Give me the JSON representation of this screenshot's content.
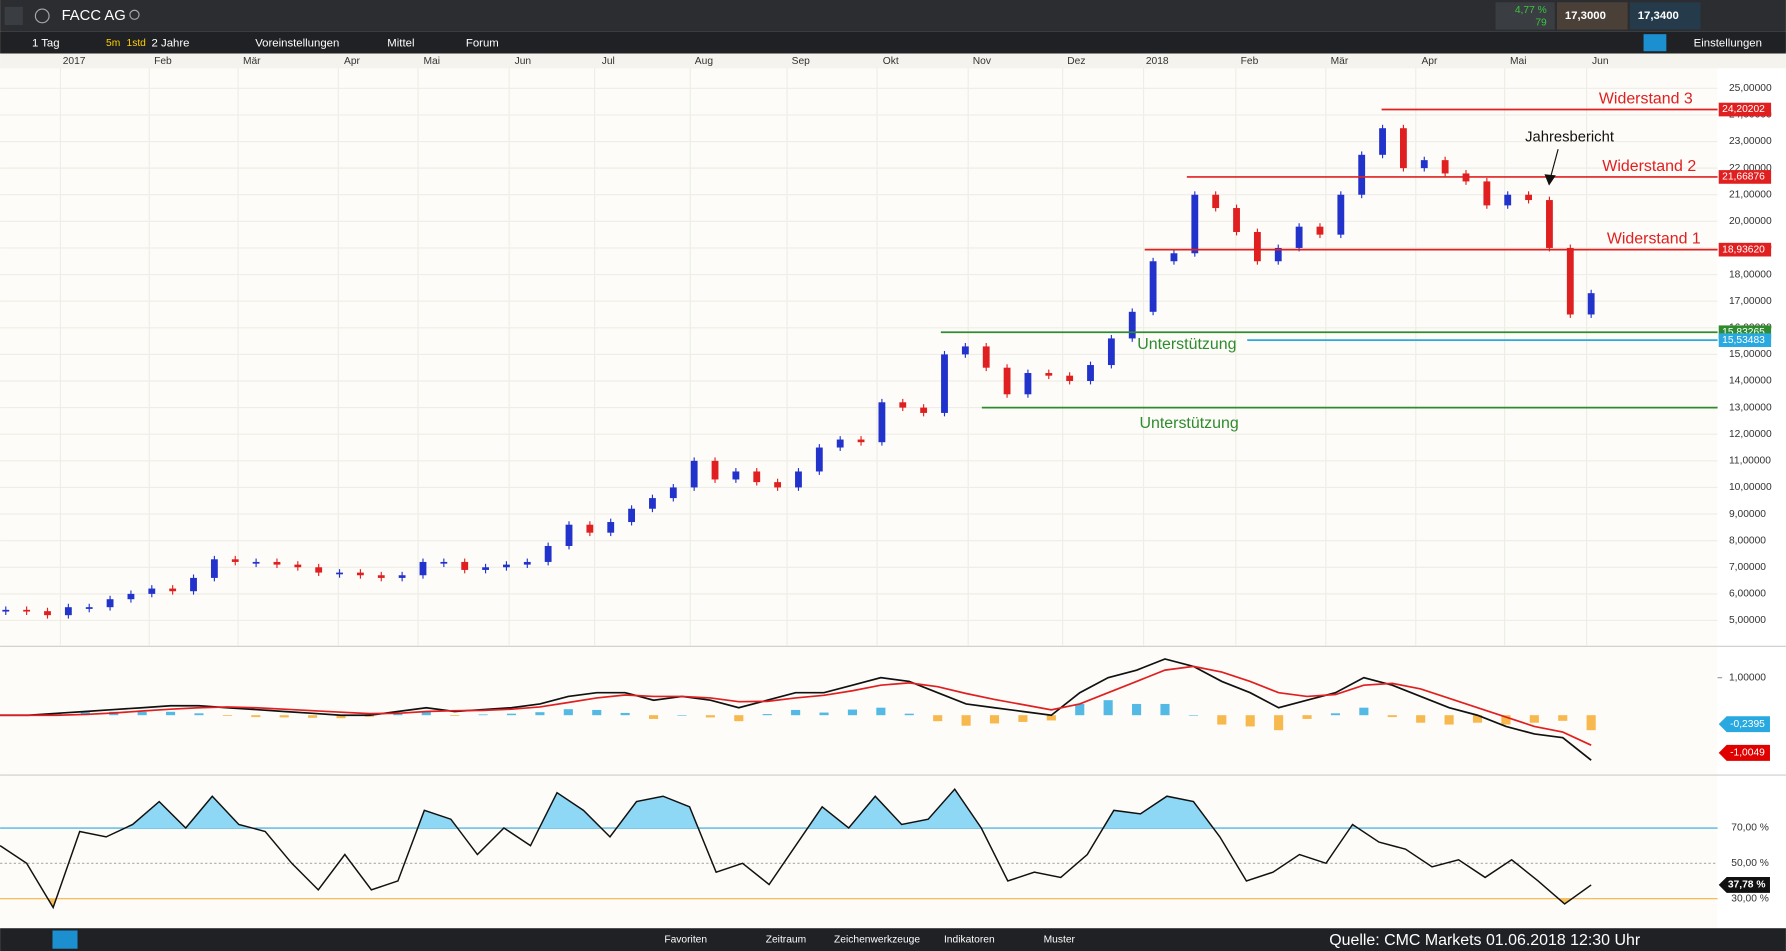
{
  "toolbar": {
    "symbol": "FACC AG",
    "change": "4,77 %",
    "count": "79",
    "bid": "17,3000",
    "ask": "17,3400"
  },
  "toolbar2": {
    "interval": "1 Tag",
    "quick1": "5m",
    "quick2": "1std",
    "range": "2 Jahre",
    "presets": "Voreinstellungen",
    "size": "Mittel",
    "forum": "Forum",
    "settings": "Einstellungen"
  },
  "footer": {
    "tabs": [
      "Favoriten",
      "Zeitraum",
      "Zeichenwerkzeuge",
      "Indikatoren",
      "Muster"
    ],
    "source": "Quelle: CMC Markets 01.06.2018 12:30 Uhr"
  },
  "chart_data": [
    {
      "type": "candlestick",
      "up_color": "#2233cc",
      "down_color": "#e02020",
      "x_labels": [
        "2017",
        "Feb",
        "Mär",
        "Apr",
        "Mai",
        "Jun",
        "Jul",
        "Aug",
        "Sep",
        "Okt",
        "Nov",
        "Dez",
        "2018",
        "Feb",
        "Mär",
        "Apr",
        "Mai",
        "Jun"
      ],
      "values": [
        5.4,
        5.35,
        5.2,
        5.5,
        5.5,
        5.8,
        6.0,
        6.2,
        6.1,
        6.6,
        7.3,
        7.2,
        7.2,
        7.1,
        7.0,
        6.8,
        6.8,
        6.7,
        6.6,
        6.7,
        7.2,
        7.2,
        6.9,
        7.0,
        7.1,
        7.2,
        7.8,
        8.6,
        8.3,
        8.7,
        9.2,
        9.6,
        10.0,
        11.0,
        10.3,
        10.6,
        10.2,
        10.0,
        10.6,
        11.5,
        11.8,
        11.7,
        13.2,
        13.0,
        12.8,
        15.0,
        15.3,
        14.5,
        13.5,
        14.3,
        14.2,
        14.0,
        14.6,
        15.6,
        16.6,
        18.5,
        18.8,
        21.0,
        20.5,
        19.6,
        18.5,
        19.0,
        19.8,
        19.5,
        21.0,
        22.5,
        23.5,
        22.0,
        22.3,
        21.8,
        21.5,
        20.6,
        21.0,
        20.8,
        19.0,
        16.5,
        17.3
      ],
      "ylim": [
        4.05,
        25.75
      ],
      "yticks": [
        {
          "value": 5,
          "label": "5,00000"
        },
        {
          "value": 6,
          "label": "6,00000"
        },
        {
          "value": 7,
          "label": "7,00000"
        },
        {
          "value": 8,
          "label": "8,00000"
        },
        {
          "value": 9,
          "label": "9,00000"
        },
        {
          "value": 10,
          "label": "10,00000"
        },
        {
          "value": 11,
          "label": "11,00000"
        },
        {
          "value": 12,
          "label": "12,00000"
        },
        {
          "value": 13,
          "label": "13,00000"
        },
        {
          "value": 14,
          "label": "14,00000"
        },
        {
          "value": 15,
          "label": "15,00000"
        },
        {
          "value": 16,
          "label": "16,00000"
        },
        {
          "value": 17,
          "label": "17,00000"
        },
        {
          "value": 18,
          "label": "18,00000"
        },
        {
          "value": 19,
          "label": "19,00000"
        },
        {
          "value": 20,
          "label": "20,00000"
        },
        {
          "value": 21,
          "label": "21,00000"
        },
        {
          "value": 22,
          "label": "22,00000"
        },
        {
          "value": 23,
          "label": "23,00000"
        },
        {
          "value": 24,
          "label": "24,00000"
        },
        {
          "value": 25,
          "label": "25,00000"
        }
      ],
      "grid": true,
      "levels": [
        {
          "name": "Widerstand 3",
          "value": 24.20202,
          "label": "24,20202",
          "color": "#e02020"
        },
        {
          "name": "Widerstand 2",
          "value": 21.66876,
          "label": "21,66876",
          "color": "#e02020"
        },
        {
          "name": "Widerstand 1",
          "value": 18.9362,
          "label": "18,93620",
          "color": "#e02020"
        },
        {
          "name": "Unterstützung",
          "value": 15.83265,
          "label": "15,83265",
          "color": "#2e8b2e"
        },
        {
          "value": 15.53483,
          "label": "15,53483",
          "color": "#29a9e0"
        },
        {
          "name": "Unterstützung",
          "value": 13,
          "color": "#2e8b2e"
        }
      ],
      "annotation": "Jahresbericht"
    },
    {
      "type": "line",
      "ylim": [
        -1.52,
        1.76
      ],
      "yticks": [
        {
          "value": 1,
          "label": "1,00000"
        }
      ],
      "series": [
        {
          "color": "#111111",
          "values": [
            0,
            0,
            0.05,
            0.1,
            0.15,
            0.2,
            0.25,
            0.25,
            0.2,
            0.15,
            0.1,
            0.05,
            0,
            0,
            0.1,
            0.2,
            0.1,
            0.15,
            0.2,
            0.3,
            0.5,
            0.6,
            0.6,
            0.4,
            0.5,
            0.4,
            0.2,
            0.4,
            0.6,
            0.6,
            0.8,
            1.0,
            0.9,
            0.6,
            0.3,
            0.2,
            0.1,
            0,
            0.6,
            1.0,
            1.2,
            1.5,
            1.3,
            0.9,
            0.6,
            0.2,
            0.4,
            0.6,
            1.0,
            0.8,
            0.5,
            0.2,
            0,
            -0.3,
            -0.5,
            -0.6,
            -1.2
          ]
        },
        {
          "color": "#e02020",
          "values": [
            0,
            0,
            0,
            0.02,
            0.06,
            0.11,
            0.16,
            0.2,
            0.22,
            0.2,
            0.16,
            0.12,
            0.08,
            0.04,
            0.05,
            0.1,
            0.12,
            0.13,
            0.16,
            0.22,
            0.34,
            0.46,
            0.54,
            0.5,
            0.5,
            0.46,
            0.36,
            0.37,
            0.46,
            0.53,
            0.65,
            0.8,
            0.86,
            0.76,
            0.58,
            0.42,
            0.28,
            0.14,
            0.3,
            0.6,
            0.9,
            1.2,
            1.3,
            1.15,
            0.9,
            0.6,
            0.5,
            0.55,
            0.8,
            0.85,
            0.7,
            0.45,
            0.2,
            -0.05,
            -0.3,
            -0.45,
            -0.8
          ]
        }
      ],
      "histogram": {
        "pos_color": "#29a9e0",
        "neg_color": "#f5a623",
        "values": [
          0,
          0,
          0.05,
          0.08,
          0.09,
          0.09,
          0.09,
          0.05,
          -0.02,
          -0.05,
          -0.06,
          -0.07,
          -0.08,
          -0.04,
          0.05,
          0.1,
          -0.02,
          0.02,
          0.04,
          0.08,
          0.16,
          0.14,
          0.06,
          -0.1,
          0,
          -0.06,
          -0.16,
          0.03,
          0.14,
          0.07,
          0.15,
          0.2,
          0.04,
          -0.16,
          -0.28,
          -0.22,
          -0.18,
          -0.14,
          0.3,
          0.4,
          0.3,
          0.3,
          0,
          -0.25,
          -0.3,
          -0.4,
          -0.1,
          0.05,
          0.2,
          -0.05,
          -0.2,
          -0.25,
          -0.2,
          -0.25,
          -0.2,
          -0.15,
          -0.4
        ]
      },
      "last_labels": [
        {
          "value": -0.2395,
          "label": "-0,2395",
          "color": "#29a9e0"
        },
        {
          "value": -1.0049,
          "label": "-1,0049",
          "color": "#e00000"
        }
      ]
    },
    {
      "type": "line",
      "ylim": [
        15.2,
        98.4
      ],
      "yticks": [
        {
          "value": 70,
          "label": "70,00 %"
        },
        {
          "value": 50,
          "label": "50,00 %"
        },
        {
          "value": 30,
          "label": "30,00 %"
        }
      ],
      "level_colors": [
        "#29a9e0",
        "#aaaaaa",
        "#f5b041"
      ],
      "series": [
        {
          "color": "#111111",
          "values": [
            60,
            50,
            25,
            68,
            65,
            72,
            85,
            70,
            88,
            72,
            68,
            50,
            35,
            55,
            35,
            40,
            80,
            75,
            55,
            70,
            60,
            90,
            80,
            65,
            85,
            88,
            82,
            45,
            50,
            38,
            60,
            82,
            70,
            88,
            72,
            75,
            92,
            70,
            40,
            45,
            42,
            55,
            80,
            78,
            88,
            85,
            65,
            40,
            45,
            55,
            50,
            72,
            62,
            58,
            48,
            52,
            42,
            52,
            40,
            27,
            37.78
          ]
        }
      ],
      "last_label": {
        "value": 37.78,
        "label": "37,78 %"
      }
    }
  ]
}
